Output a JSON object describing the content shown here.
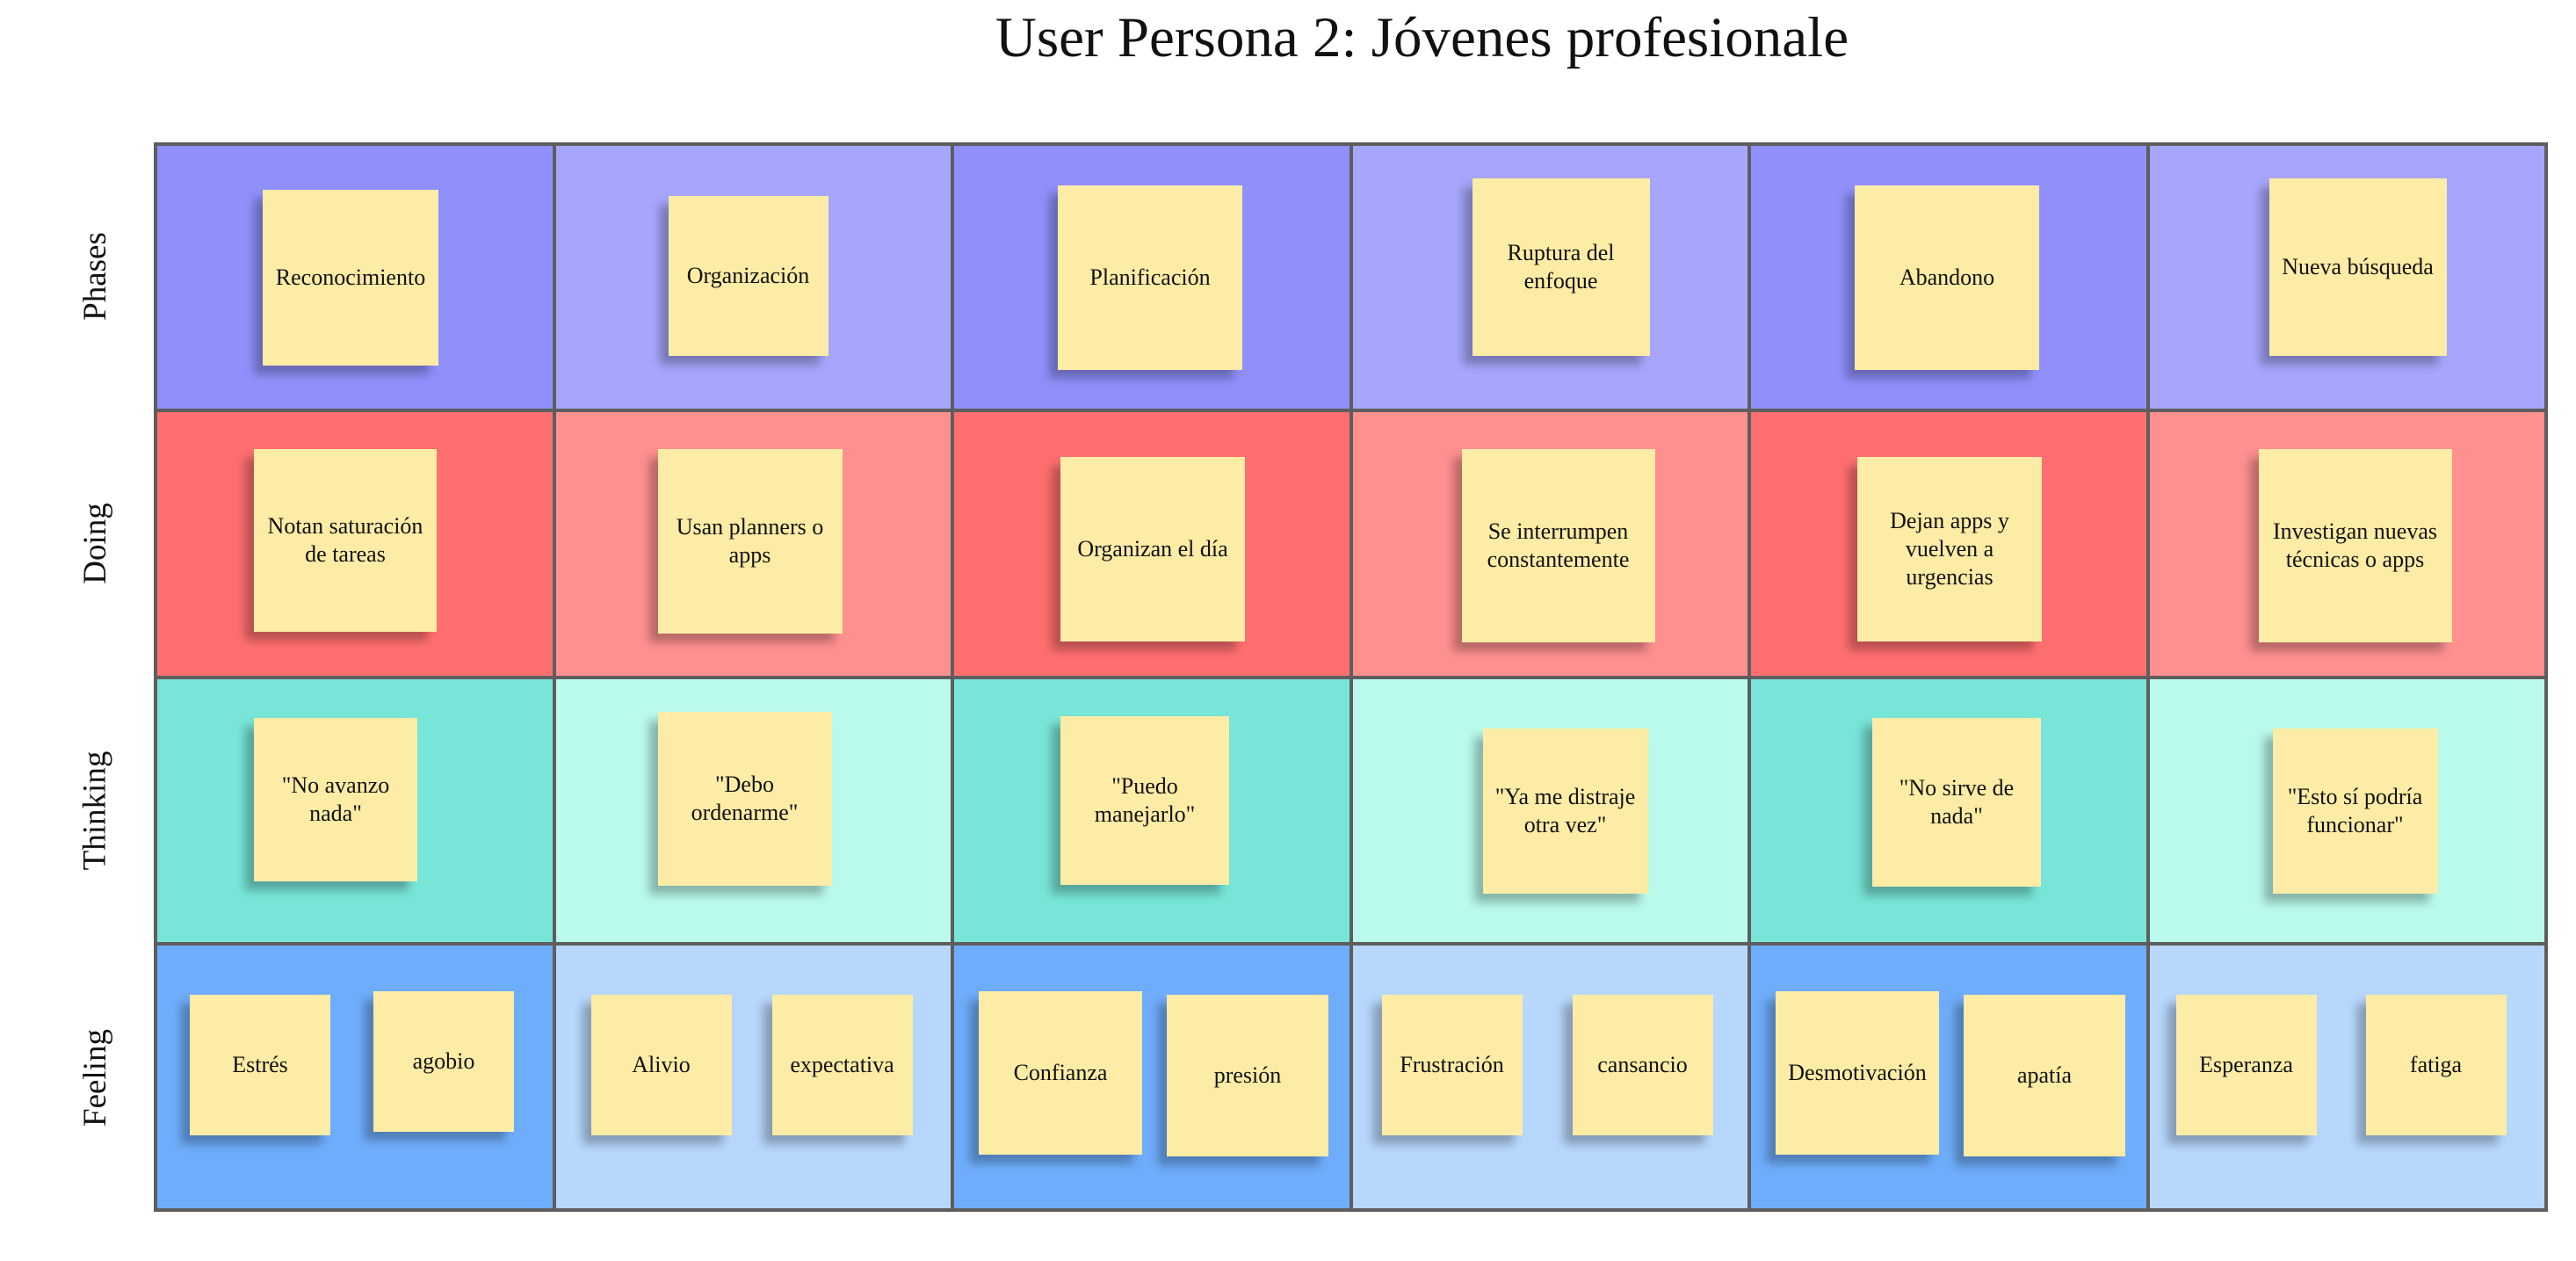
{
  "title": "User Persona 2: Jóvenes profesionale",
  "rows": [
    {
      "label": "Phases",
      "colors": [
        "#9090fc",
        "#a6a6fc",
        "#9090fc",
        "#a6a6fc",
        "#9090fc",
        "#a6a6fc"
      ]
    },
    {
      "label": "Doing",
      "colors": [
        "#ff6f6f",
        "#ff9090",
        "#ff6f6f",
        "#ff9090",
        "#ff6f6f",
        "#ff9090"
      ]
    },
    {
      "label": "Thinking",
      "colors": [
        "#77e5d7",
        "#b9faec",
        "#77e5d7",
        "#b9faec",
        "#77e5d7",
        "#b9faec"
      ]
    },
    {
      "label": "Feeling",
      "colors": [
        "#6eadfb",
        "#b7d7fc",
        "#6eadfb",
        "#b7d7fc",
        "#6eadfb",
        "#b7d7fc"
      ]
    }
  ],
  "cells": {
    "phases": [
      "Reconocimiento",
      "Organización",
      "Planificación",
      "Ruptura del enfoque",
      "Abandono",
      "Nueva búsqueda"
    ],
    "doing": [
      "Notan saturación de tareas",
      "Usan planners o apps",
      "Organizan el día",
      "Se interrumpen constantemente",
      "Dejan apps y vuelven a urgencias",
      "Investigan nuevas técnicas o apps"
    ],
    "thinking": [
      "\"No avanzo nada\"",
      "\"Debo ordenarme\"",
      "\"Puedo manejarlo\"",
      "\"Ya me distraje otra vez\"",
      "\"No sirve de nada\"",
      "\"Esto sí podría funcionar\""
    ],
    "feeling": [
      [
        "Estrés",
        "agobio"
      ],
      [
        "Alivio",
        "expectativa"
      ],
      [
        "Confianza",
        "presión"
      ],
      [
        "Frustración",
        "cansancio"
      ],
      [
        "Desmotivación",
        "apatía"
      ],
      [
        "Esperanza",
        "fatiga"
      ]
    ]
  }
}
